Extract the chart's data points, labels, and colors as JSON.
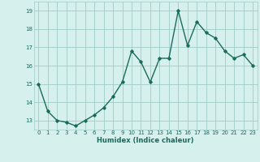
{
  "x": [
    0,
    1,
    2,
    3,
    4,
    5,
    6,
    7,
    8,
    9,
    10,
    11,
    12,
    13,
    14,
    15,
    16,
    17,
    18,
    19,
    20,
    21,
    22,
    23
  ],
  "y": [
    15.0,
    13.5,
    13.0,
    12.9,
    12.7,
    13.0,
    13.3,
    13.7,
    14.3,
    15.1,
    16.8,
    16.2,
    15.1,
    16.4,
    16.4,
    19.0,
    17.1,
    18.4,
    17.8,
    17.5,
    16.8,
    16.4,
    16.6,
    16.0
  ],
  "line_color": "#1a6b5a",
  "bg_color": "#d6f0ee",
  "grid_color": "#a0ccc8",
  "xlabel": "Humidex (Indice chaleur)",
  "ylim_min": 12.5,
  "ylim_max": 19.5,
  "yticks": [
    13,
    14,
    15,
    16,
    17,
    18,
    19
  ],
  "xticks": [
    0,
    1,
    2,
    3,
    4,
    5,
    6,
    7,
    8,
    9,
    10,
    11,
    12,
    13,
    14,
    15,
    16,
    17,
    18,
    19,
    20,
    21,
    22,
    23
  ],
  "marker": "D",
  "markersize": 1.8,
  "linewidth": 1.0,
  "tick_fontsize": 5.0,
  "xlabel_fontsize": 6.0
}
